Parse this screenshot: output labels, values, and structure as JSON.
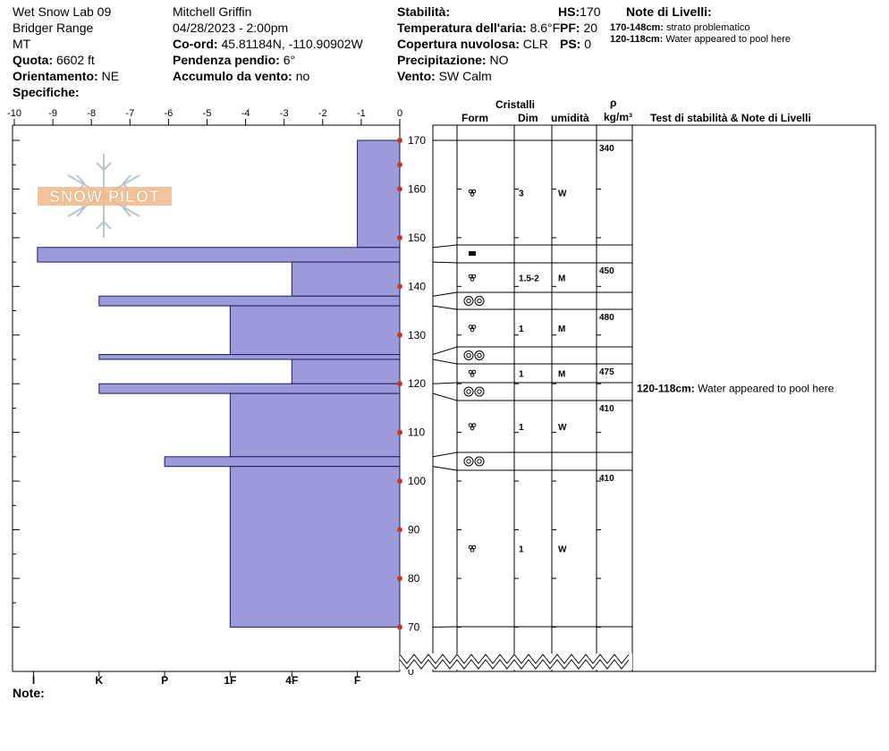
{
  "header": {
    "site": "Wet Snow Lab 09",
    "range": "Bridger Range",
    "state": "MT",
    "elevation_label": "Quota:",
    "elevation_value": "6602 ft",
    "aspect_label": "Orientamento:",
    "aspect_value": "NE",
    "specifics_label": "Specifiche:",
    "observer": "Mitchell Griffin",
    "datetime": "04/28/2023 - 2:00pm",
    "coord_label": "Co-ord:",
    "coord_value": "45.81184N, -110.90902W",
    "slope_label": "Pendenza pendio:",
    "slope_value": "6°",
    "wind_loading_label": "Accumulo da vento:",
    "wind_loading_value": "no",
    "stability_label": "Stabilità:",
    "air_temp_label": "Temperatura dell'aria:",
    "air_temp_value": "8.6°F",
    "sky_label": "Copertura nuvolosa:",
    "sky_value": "CLR",
    "precip_label": "Precipitazione:",
    "precip_value": "NO",
    "wind_label": "Vento:",
    "wind_value": "SW Calm",
    "hs_label": "HS:",
    "hs_value": "170",
    "pf_label": "PF:",
    "pf_value": "20",
    "ps_label": "PS:",
    "ps_value": "0",
    "layer_notes_title": "Note di Livelli:",
    "layer_notes": [
      {
        "range": "170-148cm:",
        "text": "strato problematico"
      },
      {
        "range": "120-118cm:",
        "text": "Water appeared to pool here"
      }
    ],
    "note_label": "Note:"
  },
  "logo_text": "SNOW PILOT",
  "columns": {
    "crystals": "Cristalli",
    "form": "Form",
    "size": "Dim",
    "moisture": "umidità",
    "rho": "ρ",
    "density_unit": "kg/m³",
    "tests": "Test di stabilità & Note di Livelli"
  },
  "colors": {
    "bar_fill": "#9b9bd9",
    "marker": "#c0392b",
    "logo": "#f0b98a",
    "flake": "#b8c4d0"
  },
  "chart_data": {
    "type": "bar",
    "title": "",
    "ylabel": "",
    "xlabel": "",
    "top_axis_ticks": [
      "-10",
      "-9",
      "-8",
      "-7",
      "-6",
      "-5",
      "-4",
      "-3",
      "-2",
      "-1",
      "0"
    ],
    "hardness_ticks": [
      "I",
      "K",
      "P",
      "1F",
      "4F",
      "F"
    ],
    "ylim": [
      0,
      170
    ],
    "height_ticks": [
      "170",
      "160",
      "150",
      "140",
      "130",
      "120",
      "110",
      "100",
      "90",
      "80",
      "70",
      "0"
    ],
    "layers": [
      {
        "top": 170,
        "bottom": 148,
        "hardness_value": -1.1
      },
      {
        "top": 148,
        "bottom": 145,
        "hardness_value": -9.4
      },
      {
        "top": 145,
        "bottom": 138,
        "hardness_value": -2.8
      },
      {
        "top": 138,
        "bottom": 136,
        "hardness_value": -7.8
      },
      {
        "top": 136,
        "bottom": 126,
        "hardness_value": -4.4
      },
      {
        "top": 126,
        "bottom": 125,
        "hardness_value": -7.8
      },
      {
        "top": 125,
        "bottom": 120,
        "hardness_value": -2.8
      },
      {
        "top": 120,
        "bottom": 118,
        "hardness_value": -7.8
      },
      {
        "top": 118,
        "bottom": 105,
        "hardness_value": -4.4
      },
      {
        "top": 105,
        "bottom": 103,
        "hardness_value": -6.1
      },
      {
        "top": 103,
        "bottom": 70,
        "hardness_value": -4.4
      }
    ],
    "grains": [
      {
        "top": 170,
        "bottom": 148,
        "form": "rounded-polycrystals",
        "size": "3",
        "moisture": "W"
      },
      {
        "top": 148,
        "bottom": 145,
        "form": "ice-formation",
        "size": "",
        "moisture": ""
      },
      {
        "top": 145,
        "bottom": 138,
        "form": "rounded-polycrystals",
        "size": "1.5-2",
        "moisture": "M"
      },
      {
        "top": 138,
        "bottom": 136,
        "form": "melt-freeze",
        "size": "",
        "moisture": ""
      },
      {
        "top": 136,
        "bottom": 126,
        "form": "rounded-polycrystals",
        "size": "1",
        "moisture": "M"
      },
      {
        "top": 126,
        "bottom": 125,
        "form": "melt-freeze",
        "size": "",
        "moisture": ""
      },
      {
        "top": 125,
        "bottom": 120,
        "form": "rounded-polycrystals",
        "size": "1",
        "moisture": "M"
      },
      {
        "top": 120,
        "bottom": 118,
        "form": "melt-freeze",
        "size": "",
        "moisture": ""
      },
      {
        "top": 118,
        "bottom": 105,
        "form": "rounded-polycrystals",
        "size": "1",
        "moisture": "W"
      },
      {
        "top": 105,
        "bottom": 103,
        "form": "melt-freeze",
        "size": "",
        "moisture": ""
      },
      {
        "top": 103,
        "bottom": 70,
        "form": "rounded-polycrystals",
        "size": "1",
        "moisture": "W"
      }
    ],
    "densities": [
      {
        "label": "340",
        "top": 170,
        "bottom": 148
      },
      {
        "label": "450",
        "top": 145,
        "bottom": 138
      },
      {
        "label": "480",
        "top": 136,
        "bottom": 126
      },
      {
        "label": "475",
        "top": 125,
        "bottom": 120
      },
      {
        "label": "410",
        "top": 118,
        "bottom": 105
      },
      {
        "label": "410",
        "top": 103,
        "bottom": 70
      }
    ],
    "layer_comments": [
      {
        "range": "120-118cm:",
        "text": "Water appeared to pool here",
        "at": 119
      }
    ]
  }
}
